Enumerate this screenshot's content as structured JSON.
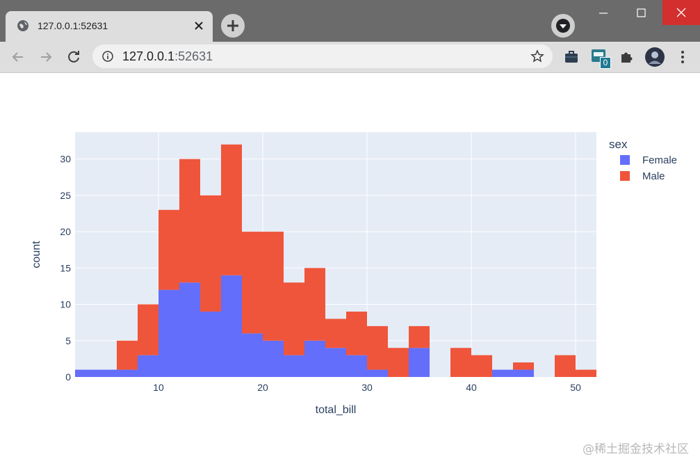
{
  "browser": {
    "tab_title": "127.0.0.1:52631",
    "url_host": "127.0.0.1",
    "url_port": ":52631",
    "extension_badge": "0",
    "icons": [
      "globe-icon",
      "close-icon",
      "plus-icon",
      "profile-menu-icon",
      "back-icon",
      "forward-icon",
      "reload-icon",
      "info-icon",
      "star-icon",
      "briefcase-icon",
      "html-extension-icon",
      "puzzle-icon",
      "avatar",
      "more-vert-icon",
      "minimize-icon",
      "maximize-icon",
      "window-close-icon"
    ]
  },
  "watermark": "@稀土掘金技术社区",
  "chart_data": {
    "type": "bar",
    "barmode": "stacked",
    "xlabel": "total_bill",
    "ylabel": "count",
    "legend_title": "sex",
    "legend_position": "right",
    "xlim": [
      2,
      52
    ],
    "ylim": [
      0,
      33.7
    ],
    "xticks": [
      10,
      20,
      30,
      40,
      50
    ],
    "yticks": [
      0,
      5,
      10,
      15,
      20,
      25,
      30
    ],
    "grid": true,
    "bin_size": 2,
    "bin_starts": [
      2,
      4,
      6,
      8,
      10,
      12,
      14,
      16,
      18,
      20,
      22,
      24,
      26,
      28,
      30,
      32,
      34,
      36,
      38,
      40,
      42,
      44,
      46,
      48,
      50
    ],
    "series": [
      {
        "name": "Female",
        "color": "#636efa",
        "values": [
          1,
          1,
          1,
          3,
          12,
          13,
          9,
          14,
          6,
          5,
          3,
          5,
          4,
          3,
          1,
          0,
          4,
          0,
          0,
          0,
          1,
          1,
          0,
          0,
          0
        ]
      },
      {
        "name": "Male",
        "color": "#ef553b",
        "values": [
          0,
          0,
          4,
          7,
          11,
          17,
          16,
          18,
          14,
          15,
          10,
          10,
          4,
          6,
          6,
          4,
          3,
          0,
          4,
          3,
          0,
          1,
          0,
          3,
          1
        ]
      }
    ],
    "plot_bg": "#e5ecf6"
  }
}
